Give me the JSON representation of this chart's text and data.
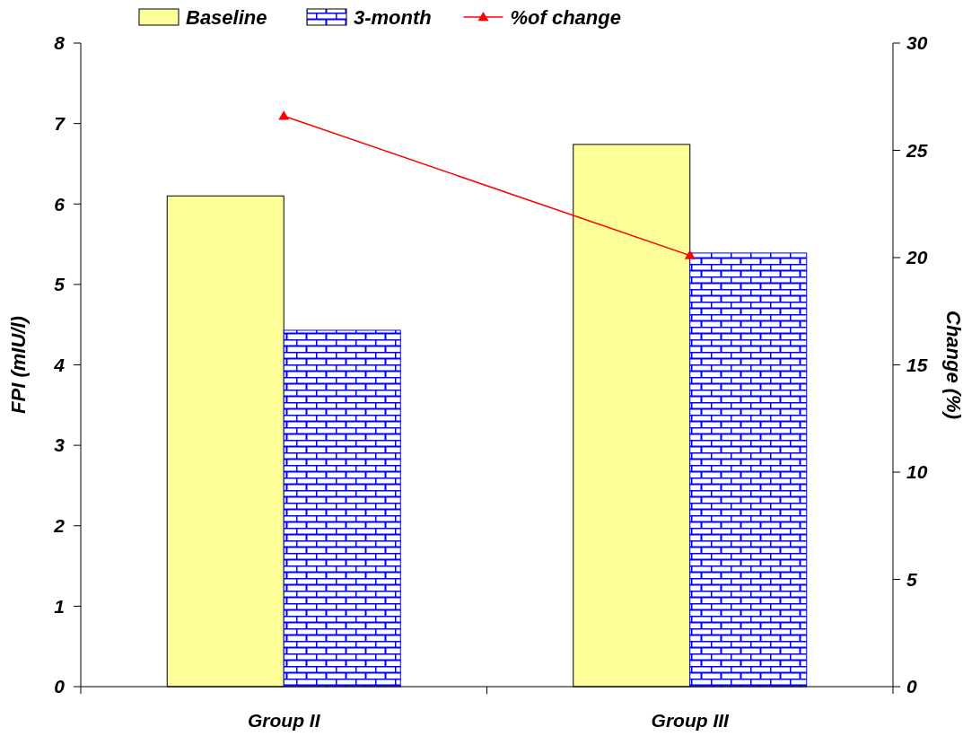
{
  "chart_data": {
    "type": "bar",
    "categories": [
      "Group II",
      "Group III"
    ],
    "ylabel": "FPI (mIU/l)",
    "y2label": "Change (%)",
    "ylim": [
      0,
      8
    ],
    "yticks": [
      0,
      1,
      2,
      3,
      4,
      5,
      6,
      7,
      8
    ],
    "y2lim": [
      0,
      30
    ],
    "y2ticks": [
      0,
      5,
      10,
      15,
      20,
      25,
      30
    ],
    "grid": false,
    "legend": "top",
    "series": [
      {
        "name": "Baseline",
        "color": "#ffff99",
        "values": [
          6.1,
          6.74
        ]
      },
      {
        "name": "3-month",
        "color": "#0000ff",
        "values": [
          4.43,
          5.39
        ]
      },
      {
        "name": "%of change",
        "type": "line",
        "axis": "y2",
        "color": "#ff0000",
        "marker": "triangle",
        "values": [
          26.6,
          20.1
        ]
      }
    ]
  }
}
